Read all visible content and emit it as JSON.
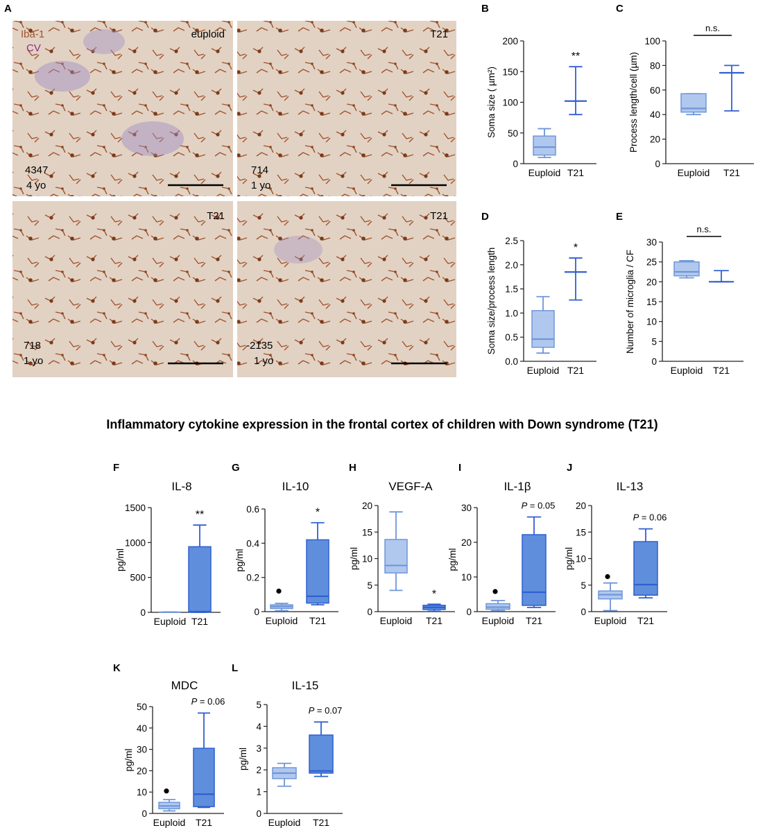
{
  "panel_A": {
    "letter": "A",
    "legend": [
      "Iba-1",
      "CV"
    ],
    "legend_colors": [
      "#a0522d",
      "#8e2a8e"
    ],
    "tiles": [
      {
        "label_top": "euploid",
        "id_line1": "4347",
        "id_line2": "4 yo"
      },
      {
        "label_top": "T21",
        "id_line1": "714",
        "id_line2": "1 yo"
      },
      {
        "label_top": "T21",
        "id_line1": "718",
        "id_line2": "1 yo"
      },
      {
        "label_top": "T21",
        "id_line1": "-2135",
        "id_line2": "1 yo"
      }
    ]
  },
  "main_title": "Inflammatory cytokine expression in the frontal cortex of children with Down syndrome (T21)",
  "colors": {
    "euploid_fill": "#b0c8ee",
    "euploid_stroke": "#6f96d8",
    "t21_fill": "#5f8fdc",
    "t21_stroke": "#2f5fd0",
    "axis": "#222222"
  },
  "chart_data": [
    {
      "panel": "B",
      "type": "box",
      "title": "",
      "ylabel": "Soma size ( µm²)",
      "ylim": [
        0,
        200
      ],
      "yticks": [
        0,
        50,
        100,
        150,
        200
      ],
      "categories": [
        "Euploid",
        "T21"
      ],
      "boxes": [
        {
          "min": 10,
          "q1": 14,
          "median": 27,
          "q3": 45,
          "max": 57
        },
        {
          "min": 80,
          "q1": 102,
          "median": 102,
          "q3": 102,
          "max": 158
        }
      ],
      "annotation": {
        "text": "**",
        "over": 1
      }
    },
    {
      "panel": "C",
      "type": "box",
      "title": "",
      "ylabel": "Process length/cell (µm)",
      "ylim": [
        0,
        100
      ],
      "yticks": [
        0,
        20,
        40,
        60,
        80,
        100
      ],
      "categories": [
        "Euploid",
        "T21"
      ],
      "boxes": [
        {
          "min": 40,
          "q1": 42,
          "median": 45,
          "q3": 57,
          "max": 57
        },
        {
          "min": 43,
          "q1": 74,
          "median": 74,
          "q3": 74,
          "max": 80
        }
      ],
      "annotation": {
        "text": "n.s.",
        "bracket": true
      }
    },
    {
      "panel": "D",
      "type": "box",
      "title": "",
      "ylabel": "Soma size/process length",
      "ylim": [
        0,
        2.5
      ],
      "yticks": [
        "0.0",
        "0.5",
        "1.0",
        "1.5",
        "2.0",
        "2.5"
      ],
      "categories": [
        "Euploid",
        "T21"
      ],
      "boxes": [
        {
          "min": 0.17,
          "q1": 0.29,
          "median": 0.46,
          "q3": 1.05,
          "max": 1.34
        },
        {
          "min": 1.27,
          "q1": 1.85,
          "median": 1.85,
          "q3": 1.85,
          "max": 2.14
        }
      ],
      "annotation": {
        "text": "*",
        "over": 1
      }
    },
    {
      "panel": "E",
      "type": "box",
      "title": "",
      "ylabel": "Number of microglia / CF",
      "ylim": [
        0,
        30
      ],
      "yticks": [
        0,
        5,
        10,
        15,
        20,
        25,
        30
      ],
      "categories": [
        "Euploid",
        "T21"
      ],
      "boxes": [
        {
          "min": 21,
          "q1": 21.5,
          "median": 22.5,
          "q3": 25,
          "max": 25.3
        },
        {
          "min": 20,
          "q1": 20,
          "median": 20,
          "q3": 20,
          "max": 22.8
        }
      ],
      "annotation": {
        "text": "n.s.",
        "bracket": true
      }
    },
    {
      "panel": "F",
      "type": "box",
      "title": "IL-8",
      "ylabel": "pg/ml",
      "ylim": [
        0,
        1500
      ],
      "yticks": [
        0,
        500,
        1000,
        1500
      ],
      "categories": [
        "Euploid",
        "T21"
      ],
      "boxes": [
        {
          "min": 0,
          "q1": 0,
          "median": 2,
          "q3": 4,
          "max": 6
        },
        {
          "min": 0,
          "q1": 0,
          "median": 10,
          "q3": 940,
          "max": 1250
        }
      ],
      "annotation": {
        "text": "**",
        "over": 1
      }
    },
    {
      "panel": "G",
      "type": "box",
      "title": "IL-10",
      "ylabel": "pg/ml",
      "ylim": [
        0,
        0.6
      ],
      "yticks": [
        0,
        0.2,
        0.4,
        0.6
      ],
      "categories": [
        "Euploid",
        "T21"
      ],
      "boxes": [
        {
          "min": 0.005,
          "q1": 0.018,
          "median": 0.03,
          "q3": 0.04,
          "max": 0.048,
          "outlier": 0.12
        },
        {
          "min": 0.04,
          "q1": 0.05,
          "median": 0.09,
          "q3": 0.42,
          "max": 0.52
        }
      ],
      "annotation": {
        "text": "*",
        "over": 1
      }
    },
    {
      "panel": "H",
      "type": "box",
      "title": "VEGF-A",
      "ylabel": "pg/ml",
      "ylim": [
        0,
        20
      ],
      "yticks": [
        0,
        5,
        10,
        15,
        20
      ],
      "categories": [
        "Euploid",
        "T21"
      ],
      "boxes": [
        {
          "min": 4,
          "q1": 7.3,
          "median": 8.7,
          "q3": 13.6,
          "max": 18.8
        },
        {
          "min": 0.1,
          "q1": 0.4,
          "median": 0.8,
          "q3": 1.2,
          "max": 1.4
        }
      ],
      "annotation": {
        "text": "*",
        "over": 1
      }
    },
    {
      "panel": "I",
      "type": "box",
      "title": "IL-1β",
      "ylabel": "pg/ml",
      "ylim": [
        0,
        30
      ],
      "yticks": [
        0,
        10,
        20,
        30
      ],
      "categories": [
        "Euploid",
        "T21"
      ],
      "boxes": [
        {
          "min": 0.3,
          "q1": 0.7,
          "median": 1.3,
          "q3": 2.3,
          "max": 3.2,
          "outlier": 5.8
        },
        {
          "min": 1.2,
          "q1": 1.8,
          "median": 5.6,
          "q3": 22.2,
          "max": 27.3
        }
      ],
      "annotation": {
        "text": "P = 0.05",
        "italic_prefix": "P",
        "rest": " = 0.05",
        "over": 1
      }
    },
    {
      "panel": "J",
      "type": "box",
      "title": "IL-13",
      "ylabel": "pg/ml",
      "ylim": [
        0,
        20
      ],
      "yticks": [
        0,
        5,
        10,
        15,
        20
      ],
      "categories": [
        "Euploid",
        "T21"
      ],
      "boxes": [
        {
          "min": 0.2,
          "q1": 2.4,
          "median": 3.2,
          "q3": 3.9,
          "max": 5.4,
          "outlier": 6.6
        },
        {
          "min": 2.6,
          "q1": 3.1,
          "median": 5.1,
          "q3": 13.2,
          "max": 15.6
        }
      ],
      "annotation": {
        "text": "P = 0.06",
        "italic_prefix": "P",
        "rest": " = 0.06",
        "over": 1
      }
    },
    {
      "panel": "K",
      "type": "box",
      "title": "MDC",
      "ylabel": "pg/ml",
      "ylim": [
        0,
        50
      ],
      "yticks": [
        0,
        10,
        20,
        30,
        40,
        50
      ],
      "categories": [
        "Euploid",
        "T21"
      ],
      "boxes": [
        {
          "min": 1.2,
          "q1": 2.2,
          "median": 3.5,
          "q3": 5.2,
          "max": 6.5,
          "outlier": 10.5
        },
        {
          "min": 2.8,
          "q1": 3.2,
          "median": 9,
          "q3": 30.5,
          "max": 47
        }
      ],
      "annotation": {
        "text": "P = 0.06",
        "italic_prefix": "P",
        "rest": " = 0.06",
        "over": 1
      }
    },
    {
      "panel": "L",
      "type": "box",
      "title": "IL-15",
      "ylabel": "pg/ml",
      "ylim": [
        0,
        5
      ],
      "yticks": [
        0,
        1,
        2,
        3,
        4,
        5
      ],
      "categories": [
        "Euploid",
        "T21"
      ],
      "boxes": [
        {
          "min": 1.25,
          "q1": 1.6,
          "median": 1.85,
          "q3": 2.1,
          "max": 2.3
        },
        {
          "min": 1.7,
          "q1": 1.85,
          "median": 1.95,
          "q3": 3.6,
          "max": 4.2
        }
      ],
      "annotation": {
        "text": "P = 0.07",
        "italic_prefix": "P",
        "rest": " = 0.07",
        "over": 1
      }
    }
  ]
}
